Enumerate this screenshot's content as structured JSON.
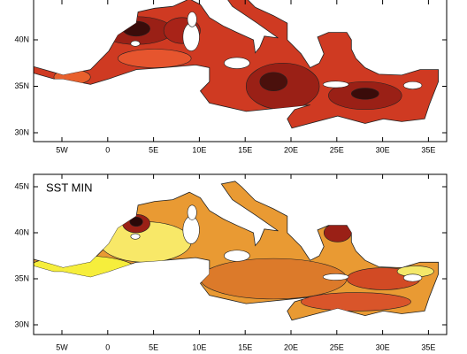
{
  "panels": [
    {
      "x_labels": [
        "5W",
        "0",
        "5E",
        "10E",
        "15E",
        "20E",
        "25E",
        "30E",
        "35E"
      ],
      "y_labels": [
        "40N",
        "35N",
        "30N"
      ]
    },
    {
      "title": "SST MIN",
      "x_labels": [
        "5W",
        "0",
        "5E",
        "10E",
        "15E",
        "20E",
        "25E",
        "30E",
        "35E"
      ],
      "y_labels": [
        "45N",
        "40N",
        "35N",
        "30N"
      ]
    }
  ]
}
